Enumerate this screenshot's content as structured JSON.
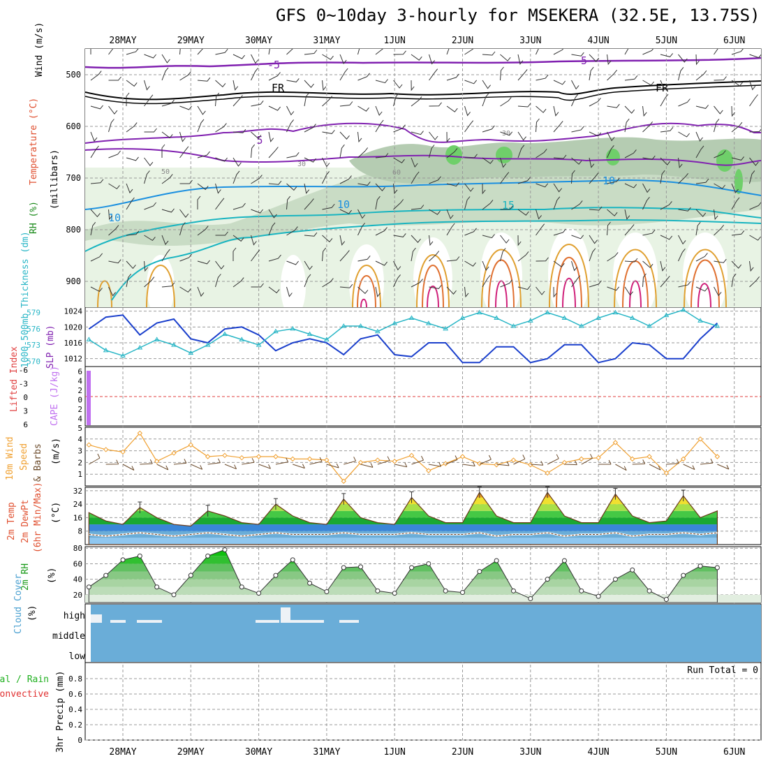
{
  "title": "GFS 0~10day 3-hourly for MSEKERA (32.5E, 13.75S)",
  "dates": [
    "28MAY",
    "29MAY",
    "30MAY",
    "31MAY",
    "1JUN",
    "2JUN",
    "3JUN",
    "4JUN",
    "5JUN",
    "6JUN"
  ],
  "panels": {
    "upper": {
      "ylabel_wind": "Wind (m/s)",
      "ylabel_temp": "Temperature (°C)",
      "ylabel_rh": "RH (%)",
      "ylabel_mb": "(millibars)",
      "yticks": [
        500,
        600,
        700,
        800,
        900
      ],
      "contour_labels": [
        "-5",
        "-5",
        "FR",
        "FR",
        "5",
        "10",
        "10",
        "10",
        "15",
        "50",
        "30",
        "60",
        "30"
      ]
    },
    "pressure": {
      "ylabel_thick": "1000-500mb Thickness (dm)",
      "ylabel_slp": "SLP (mb)",
      "thick_ticks": [
        "579",
        "576",
        "573",
        "570"
      ],
      "slp_ticks": [
        "1024",
        "1020",
        "1016",
        "1012"
      ]
    },
    "cape": {
      "ylabel_li": "Lifted Index",
      "ylabel_cape": "CAPE (J/kg)",
      "li_ticks": [
        "-6",
        "-3",
        "0",
        "3",
        "6"
      ],
      "cape_ticks": [
        "6",
        "4",
        "2",
        "0",
        "2",
        "4",
        "5"
      ]
    },
    "wind10m": {
      "ylabel_a": "10m Wind",
      "ylabel_b": "Speed",
      "ylabel_c": "& Barbs",
      "ylabel_unit": "(m/s)",
      "yticks": [
        "4",
        "3",
        "2",
        "1"
      ]
    },
    "temp2m": {
      "ylabel_a": "2m Temp",
      "ylabel_b": "2m DewPt",
      "ylabel_c": "(6hr Min/Max)",
      "ylabel_unit": "(°C)",
      "yticks": [
        "32",
        "24",
        "16",
        "8"
      ]
    },
    "rh2m": {
      "ylabel_a": "2m RH",
      "ylabel_unit": "(%)",
      "yticks": [
        "80",
        "60",
        "40",
        "20"
      ]
    },
    "cloud": {
      "ylabel_a": "Cloud Cover",
      "ylabel_unit": "(%)",
      "levels": [
        "high",
        "middle",
        "low"
      ]
    },
    "precip": {
      "ylabel_a": "Total / Rain",
      "ylabel_b": "Convective",
      "ylabel_c": "3hr Precip (mm)",
      "yticks": [
        "0.8",
        "0.6",
        "0.4",
        "0.2",
        "0"
      ],
      "run_total": "Run Total = 0"
    }
  },
  "colors": {
    "slp": "#1a3fcc",
    "thickness": "#29b6c6",
    "wind_speed": "#f0a030",
    "barb": "#6b4a2a",
    "rh_fill": "#22cc22",
    "cloud_fill": "#6aadd8",
    "cape_bar": "#c070f0",
    "lifted_index": "#e04040"
  },
  "chart_data": [
    {
      "type": "line",
      "name": "SLP",
      "unit": "mb",
      "x": [
        "28MAY 00",
        "28MAY 06",
        "28MAY 12",
        "28MAY 18",
        "29MAY 00",
        "29MAY 06",
        "29MAY 12",
        "29MAY 18",
        "30MAY 00",
        "30MAY 06",
        "30MAY 12",
        "30MAY 18",
        "31MAY 00",
        "31MAY 06",
        "31MAY 12",
        "31MAY 18",
        "1JUN 00",
        "1JUN 06",
        "1JUN 12",
        "1JUN 18",
        "2JUN 00",
        "2JUN 06",
        "2JUN 12",
        "2JUN 18",
        "3JUN 00",
        "3JUN 06",
        "3JUN 12",
        "3JUN 18",
        "4JUN 00",
        "4JUN 06",
        "4JUN 12",
        "4JUN 18",
        "5JUN 00",
        "5JUN 06",
        "5JUN 12",
        "5JUN 18",
        "6JUN 00",
        "6JUN 06"
      ],
      "values": [
        1019.5,
        1022.5,
        1023,
        1018,
        1021,
        1022,
        1017,
        1016,
        1019.5,
        1020,
        1018,
        1014,
        1016,
        1017,
        1016,
        1013,
        1017,
        1018,
        1013,
        1012.5,
        1016,
        1016,
        1011,
        1011,
        1015,
        1015,
        1011,
        1012,
        1015.5,
        1015.5,
        1011,
        1012,
        1016,
        1015.5,
        1012,
        1012,
        1017,
        1021
      ],
      "ylim": [
        1010,
        1025
      ]
    },
    {
      "type": "line",
      "name": "1000-500mb Thickness",
      "unit": "dm",
      "values": [
        574,
        572,
        571,
        572.5,
        574,
        573,
        571.5,
        573,
        575,
        574,
        573,
        575.5,
        576,
        575,
        574,
        576.5,
        576.5,
        575.5,
        577,
        578,
        577,
        576,
        578,
        579,
        578,
        576.5,
        577.5,
        579,
        578,
        576.5,
        578,
        579,
        578,
        576.5,
        578.5,
        579.5,
        577.5,
        576.5
      ],
      "ylim": [
        569,
        580
      ]
    },
    {
      "type": "line",
      "name": "10m Wind Speed",
      "unit": "m/s",
      "values": [
        3.5,
        3.1,
        2.9,
        4.5,
        2.1,
        2.8,
        3.5,
        2.5,
        2.6,
        2.4,
        2.5,
        2.5,
        2.3,
        2.3,
        2.2,
        0.4,
        2,
        2.2,
        2.1,
        2.6,
        1.3,
        1.9,
        2.5,
        1.9,
        1.8,
        2.2,
        1.8,
        1.1,
        2,
        2.3,
        2.4,
        3.7,
        2.3,
        2.5,
        1.1,
        2.3,
        4,
        2.5
      ],
      "ylim": [
        0,
        5
      ]
    },
    {
      "type": "area",
      "name": "2m Temp",
      "unit": "°C",
      "values": [
        19,
        14,
        12,
        22,
        16,
        12,
        11,
        20,
        17,
        13,
        12,
        24,
        17,
        13,
        12,
        27,
        16,
        13,
        12,
        28,
        17,
        13,
        13,
        31,
        17,
        13,
        13,
        31,
        17,
        13,
        13,
        30,
        17,
        13,
        14,
        29,
        16,
        20
      ],
      "ylim": [
        0,
        34
      ]
    },
    {
      "type": "line",
      "name": "2m DewPt",
      "unit": "°C",
      "values": [
        6,
        5,
        6,
        7,
        6,
        5,
        6,
        7,
        6,
        5,
        6,
        7,
        6,
        6,
        6,
        7,
        6,
        6,
        6,
        7,
        6,
        6,
        6,
        7,
        5,
        6,
        6,
        7,
        5,
        6,
        6,
        7,
        5,
        6,
        6,
        7,
        6,
        7
      ],
      "ylim": [
        0,
        34
      ]
    },
    {
      "type": "area",
      "name": "2m RH",
      "unit": "%",
      "values": [
        30,
        45,
        65,
        70,
        30,
        20,
        45,
        70,
        78,
        30,
        22,
        45,
        65,
        35,
        24,
        55,
        56,
        25,
        22,
        55,
        60,
        25,
        23,
        50,
        64,
        25,
        15,
        40,
        64,
        25,
        18,
        40,
        52,
        25,
        14,
        45,
        57,
        55
      ],
      "ylim": [
        10,
        82
      ]
    },
    {
      "type": "bar",
      "name": "3hr Precip",
      "unit": "mm",
      "values": [
        0,
        0,
        0,
        0,
        0,
        0,
        0,
        0,
        0,
        0,
        0,
        0,
        0,
        0,
        0,
        0,
        0,
        0,
        0,
        0,
        0,
        0,
        0,
        0,
        0,
        0,
        0,
        0,
        0,
        0,
        0,
        0,
        0,
        0,
        0,
        0,
        0,
        0
      ],
      "ylim": [
        0,
        1
      ],
      "run_total": 0
    }
  ]
}
